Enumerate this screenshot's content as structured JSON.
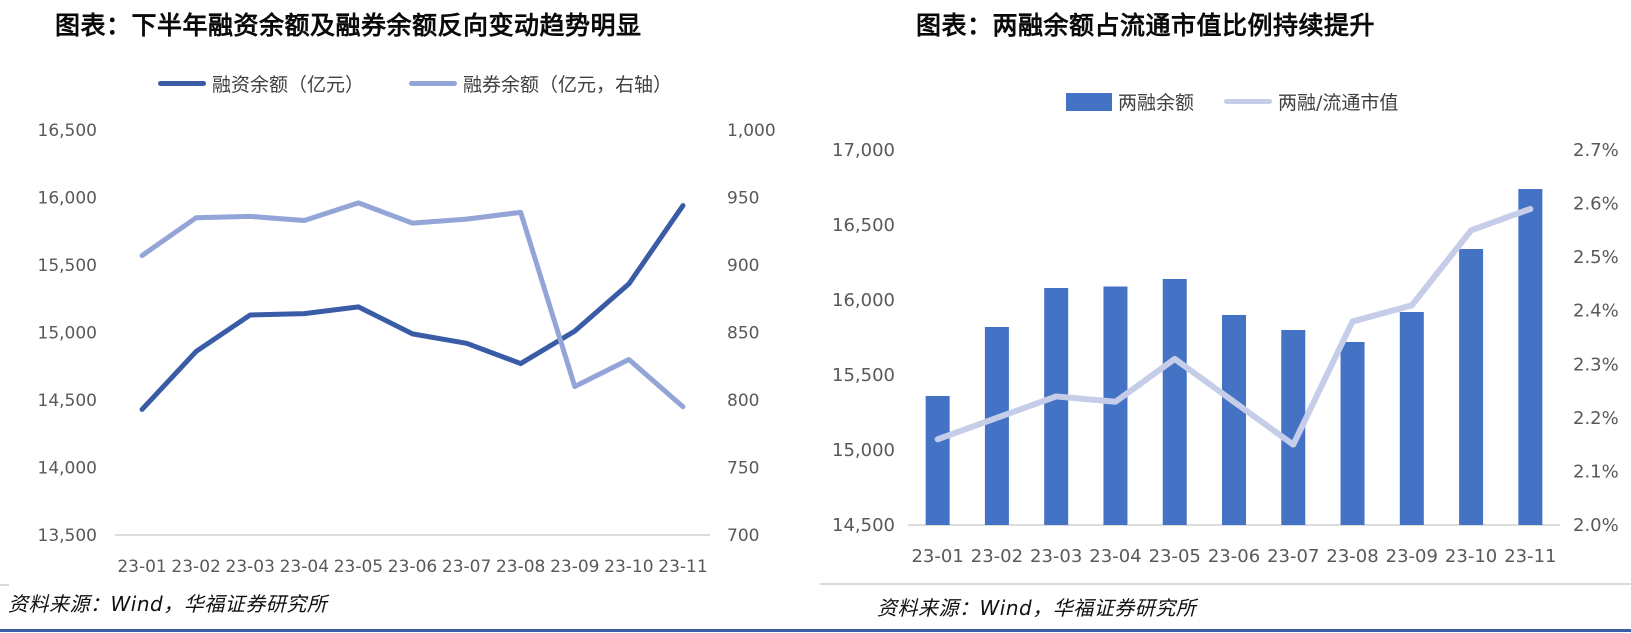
{
  "page": {
    "background_color": "#ffffff",
    "border_color": "#3B5CA7"
  },
  "chart_data": [
    {
      "type": "line",
      "title": "图表：下半年融资余额及融券余额反向变动趋势明显",
      "categories": [
        "23-01",
        "23-02",
        "23-03",
        "23-04",
        "23-05",
        "23-06",
        "23-07",
        "23-08",
        "23-09",
        "23-10",
        "23-11"
      ],
      "series": [
        {
          "name": "融资余额（亿元）",
          "style": "line",
          "axis": "left",
          "color": "#3A5CA6",
          "values": [
            14430,
            14860,
            15130,
            15140,
            15190,
            14990,
            14920,
            14770,
            15010,
            15360,
            15940
          ]
        },
        {
          "name": "融券余额（亿元，右轴）",
          "style": "line",
          "axis": "right",
          "color": "#93A5D6",
          "values": [
            907,
            935,
            936,
            933,
            946,
            931,
            934,
            939,
            810,
            830,
            795
          ]
        }
      ],
      "left_axis": {
        "min": 13500,
        "max": 16500,
        "ticks": [
          "16,500",
          "16,000",
          "15,500",
          "15,000",
          "14,500",
          "14,000",
          "13,500"
        ]
      },
      "right_axis": {
        "min": 700,
        "max": 1000,
        "ticks": [
          "1,000",
          "950",
          "900",
          "850",
          "800",
          "750",
          "700"
        ]
      },
      "grid": false,
      "legend_position": "top",
      "axis_text_color": "#595959",
      "baseline_color": "#d0d0d0",
      "source": "资料来源：Wind，华福证券研究所"
    },
    {
      "type": "bar+line",
      "title": "图表：两融余额占流通市值比例持续提升",
      "categories": [
        "23-01",
        "23-02",
        "23-03",
        "23-04",
        "23-05",
        "23-06",
        "23-07",
        "23-08",
        "23-09",
        "23-10",
        "23-11"
      ],
      "series": [
        {
          "name": "两融余额",
          "style": "bar",
          "axis": "left",
          "color": "#4472C4",
          "values": [
            15360,
            15820,
            16080,
            16090,
            16140,
            15900,
            15800,
            15720,
            15920,
            16340,
            16740
          ]
        },
        {
          "name": "两融/流通市值",
          "style": "line",
          "axis": "right",
          "color": "#C5CDE8",
          "values": [
            2.16,
            2.2,
            2.24,
            2.23,
            2.31,
            2.23,
            2.15,
            2.38,
            2.41,
            2.55,
            2.59
          ]
        }
      ],
      "left_axis": {
        "min": 14500,
        "max": 17000,
        "ticks": [
          "17,000",
          "16,500",
          "16,000",
          "15,500",
          "15,000",
          "14,500"
        ]
      },
      "right_axis": {
        "min": 2.0,
        "max": 2.7,
        "ticks": [
          "2.7%",
          "2.6%",
          "2.5%",
          "2.4%",
          "2.3%",
          "2.2%",
          "2.1%",
          "2.0%"
        ]
      },
      "grid": false,
      "legend_position": "top",
      "axis_text_color": "#595959",
      "baseline_color": "#d0d0d0",
      "source": "资料来源：Wind，华福证券研究所"
    }
  ]
}
